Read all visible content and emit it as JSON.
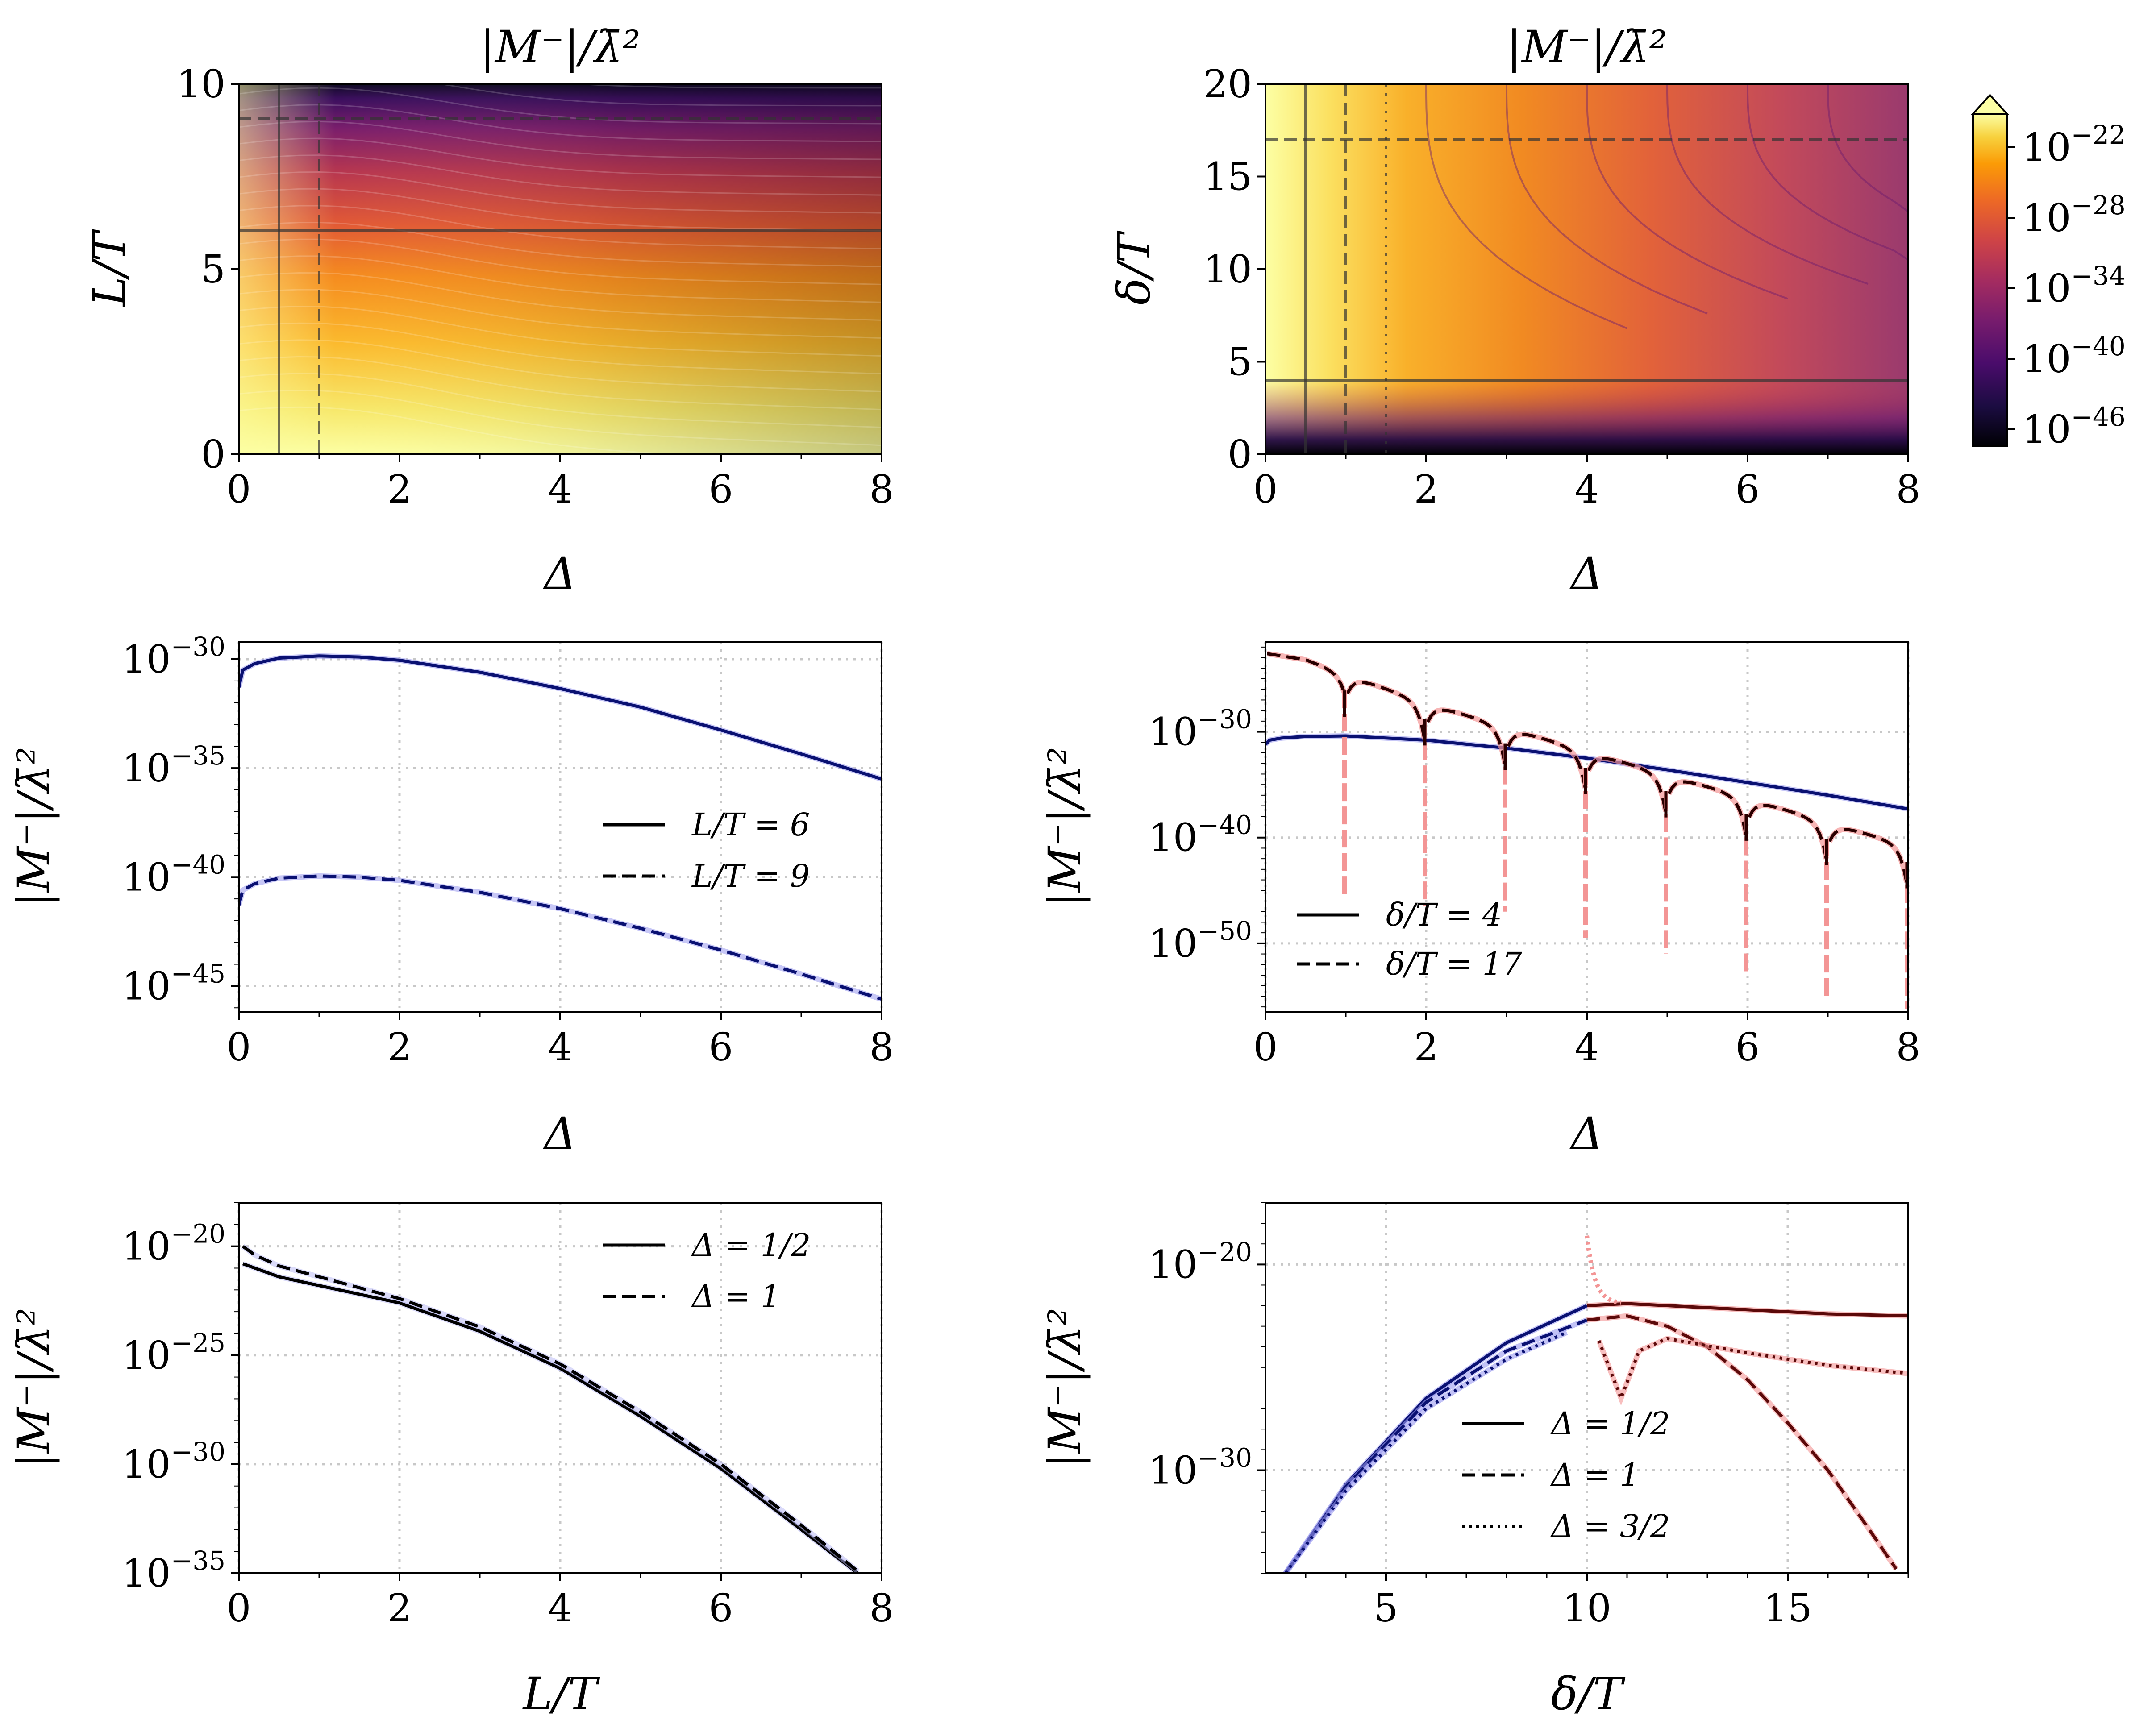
{
  "chart_data": [
    {
      "id": "p1",
      "type": "heatmap",
      "title": "|M⁻|/λ̄²",
      "xlabel": "Δ",
      "ylabel": "L/T",
      "xlim": [
        0,
        8
      ],
      "ylim": [
        0,
        10
      ],
      "xticks": [
        "0",
        "2",
        "4",
        "6",
        "8"
      ],
      "yticks": [
        "0",
        "5",
        "10"
      ],
      "colormap": "inferno (log scale)",
      "reference_lines": [
        {
          "orientation": "vertical",
          "value": 0.5,
          "style": "solid"
        },
        {
          "orientation": "vertical",
          "value": 1,
          "style": "dashed"
        },
        {
          "orientation": "horizontal",
          "value": 6,
          "style": "solid"
        },
        {
          "orientation": "horizontal",
          "value": 9,
          "style": "dashed"
        }
      ]
    },
    {
      "id": "p2",
      "type": "heatmap",
      "title": "|M⁻|/λ̄²",
      "xlabel": "Δ",
      "ylabel": "δ/T",
      "xlim": [
        0,
        8
      ],
      "ylim": [
        0,
        20
      ],
      "xticks": [
        "0",
        "2",
        "4",
        "6",
        "8"
      ],
      "yticks": [
        "0",
        "5",
        "10",
        "15",
        "20"
      ],
      "colormap": "inferno (log scale)",
      "colorbar": {
        "ticks": [
          "10^-22",
          "10^-28",
          "10^-34",
          "10^-40",
          "10^-46"
        ],
        "extend": "max"
      },
      "reference_lines": [
        {
          "orientation": "vertical",
          "value": 0.5,
          "style": "solid"
        },
        {
          "orientation": "vertical",
          "value": 1,
          "style": "dashed"
        },
        {
          "orientation": "vertical",
          "value": 1.5,
          "style": "dotted"
        },
        {
          "orientation": "horizontal",
          "value": 4,
          "style": "solid"
        },
        {
          "orientation": "horizontal",
          "value": 17,
          "style": "dashed"
        }
      ]
    },
    {
      "id": "p3",
      "type": "line",
      "xlabel": "Δ",
      "ylabel": "|M⁻|/λ̄²",
      "yscale": "log",
      "xlim": [
        0,
        8
      ],
      "ylim_exp": [
        -46.2,
        -29.2
      ],
      "xticks": [
        "0",
        "2",
        "4",
        "6",
        "8"
      ],
      "yticks": [
        "10^-30",
        "10^-35",
        "10^-40",
        "10^-45"
      ],
      "grid": true,
      "legend": "right-middle",
      "series": [
        {
          "name": "L/T = 6",
          "style": "solid",
          "x": [
            0,
            0.05,
            0.2,
            0.5,
            1,
            1.5,
            2,
            3,
            4,
            5,
            6,
            7,
            8
          ],
          "log10_y": [
            -31.3,
            -30.5,
            -30.2,
            -29.95,
            -29.85,
            -29.9,
            -30.05,
            -30.6,
            -31.35,
            -32.2,
            -33.25,
            -34.35,
            -35.5
          ]
        },
        {
          "name": "L/T = 9",
          "style": "dashed",
          "x": [
            0,
            0.05,
            0.2,
            0.5,
            1,
            1.5,
            2,
            3,
            4,
            5,
            6,
            7,
            8
          ],
          "log10_y": [
            -41.3,
            -40.6,
            -40.3,
            -40.05,
            -39.95,
            -40.0,
            -40.15,
            -40.7,
            -41.45,
            -42.35,
            -43.35,
            -44.45,
            -45.6
          ]
        }
      ]
    },
    {
      "id": "p4",
      "type": "line",
      "xlabel": "Δ",
      "ylabel": "|M⁻|/λ̄²",
      "yscale": "log",
      "xlim": [
        0,
        8
      ],
      "ylim_exp": [
        -56.5,
        -21.5
      ],
      "xticks": [
        "0",
        "2",
        "4",
        "6",
        "8"
      ],
      "yticks": [
        "10^-30",
        "10^-40",
        "10^-50"
      ],
      "grid": true,
      "legend": "lower-left",
      "series": [
        {
          "name": "δ/T = 4",
          "style": "solid",
          "x": [
            0,
            0.05,
            0.2,
            0.5,
            1,
            2,
            3,
            4,
            5,
            6,
            7,
            8
          ],
          "log10_y": [
            -31.2,
            -30.8,
            -30.6,
            -30.45,
            -30.4,
            -30.8,
            -31.55,
            -32.5,
            -33.6,
            -34.8,
            -36.0,
            -37.3
          ]
        },
        {
          "name": "δ/T = 17",
          "style": "dashed",
          "envelope_x": [
            0,
            0.5,
            1,
            2,
            3,
            4,
            5,
            6,
            7,
            8
          ],
          "envelope_log10_y": [
            -22.6,
            -23.2,
            -24.6,
            -27.3,
            -29.6,
            -31.9,
            -34.1,
            -36.3,
            -38.6,
            -40.8
          ],
          "dips_at": [
            1,
            2,
            3,
            4,
            5,
            6,
            7,
            8
          ]
        }
      ]
    },
    {
      "id": "p5",
      "type": "line",
      "xlabel": "L/T",
      "ylabel": "|M⁻|/λ̄²",
      "yscale": "log",
      "xlim": [
        0,
        8
      ],
      "ylim_exp": [
        -35,
        -18
      ],
      "xticks": [
        "0",
        "2",
        "4",
        "6",
        "8"
      ],
      "yticks": [
        "10^-20",
        "10^-25",
        "10^-30",
        "10^-35"
      ],
      "grid": true,
      "legend": "upper-right",
      "series": [
        {
          "name": "Δ = 1/2",
          "style": "solid",
          "x": [
            0.05,
            0.5,
            1,
            2,
            3,
            4,
            5,
            6,
            7,
            7.7
          ],
          "log10_y": [
            -20.8,
            -21.4,
            -21.8,
            -22.6,
            -23.9,
            -25.6,
            -27.8,
            -30.2,
            -33.0,
            -35.0
          ]
        },
        {
          "name": "Δ = 1",
          "style": "dashed",
          "x": [
            0.05,
            0.2,
            0.5,
            1,
            2,
            3,
            4,
            5,
            6,
            7,
            7.7
          ],
          "log10_y": [
            -20.0,
            -20.4,
            -20.9,
            -21.4,
            -22.4,
            -23.7,
            -25.4,
            -27.6,
            -30.0,
            -32.8,
            -34.9
          ]
        }
      ]
    },
    {
      "id": "p6",
      "type": "line",
      "xlabel": "δ/T",
      "ylabel": "|M⁻|/λ̄²",
      "yscale": "log",
      "xlim": [
        2,
        18
      ],
      "ylim_exp": [
        -35,
        -17
      ],
      "xticks": [
        "5",
        "10",
        "15"
      ],
      "yticks": [
        "10^-20",
        "10^-30"
      ],
      "grid": true,
      "legend": "lower-center",
      "series": [
        {
          "name": "Δ = 1/2",
          "style": "solid",
          "x": [
            2.5,
            4,
            6,
            8,
            10,
            11,
            12,
            14,
            16,
            18
          ],
          "log10_y": [
            -35.0,
            -30.7,
            -26.5,
            -23.8,
            -22.0,
            -21.9,
            -22.0,
            -22.2,
            -22.4,
            -22.5
          ]
        },
        {
          "name": "Δ = 1",
          "style": "dashed",
          "x": [
            2.5,
            4,
            6,
            8,
            10,
            11,
            12,
            13,
            14,
            15,
            16,
            17,
            17.7
          ],
          "log10_y": [
            -35.0,
            -30.8,
            -26.7,
            -24.2,
            -22.7,
            -22.5,
            -23.0,
            -24.0,
            -25.6,
            -27.7,
            -30.0,
            -32.8,
            -34.8
          ]
        },
        {
          "name": "Δ = 3/2",
          "style": "dotted",
          "x": [
            2.5,
            4,
            6,
            8,
            9.5,
            10.3,
            10.85,
            11.3,
            12,
            14,
            16,
            18
          ],
          "log10_y": [
            -35.0,
            -31.0,
            -27.0,
            -24.6,
            -23.3,
            -23.7,
            -26.5,
            -24.2,
            -23.6,
            -24.3,
            -24.9,
            -25.3
          ]
        }
      ]
    }
  ]
}
